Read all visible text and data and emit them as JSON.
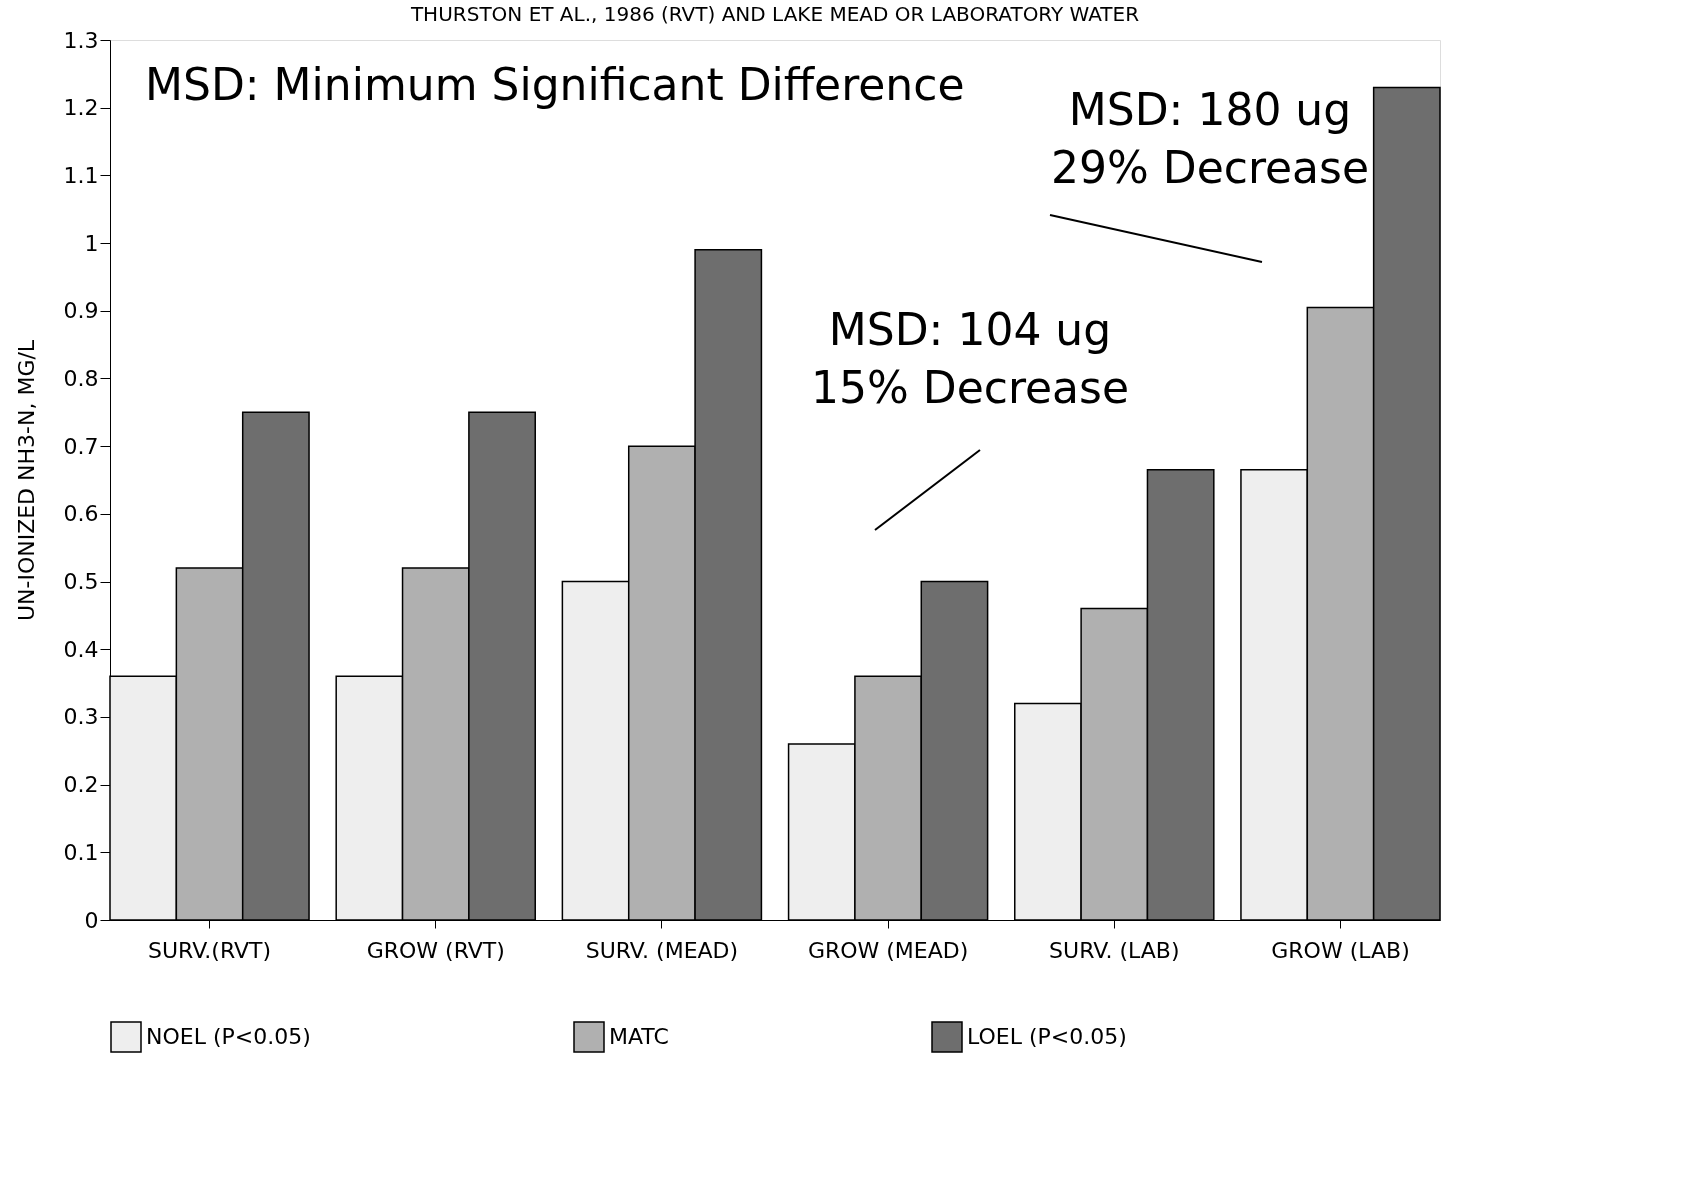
{
  "chart_data": {
    "type": "bar",
    "title": "THURSTON ET AL., 1986 (RVT) AND LAKE MEAD OR LABORATORY WATER",
    "ylabel": "UN-IONIZED NH3-N, MG/L",
    "categories": [
      "SURV.(RVT)",
      "GROW (RVT)",
      "SURV. (MEAD)",
      "GROW (MEAD)",
      "SURV. (LAB)",
      "GROW (LAB)"
    ],
    "series": [
      {
        "name": "NOEL (P<0.05)",
        "color": "#eeeeee",
        "values": [
          0.36,
          0.36,
          0.5,
          0.26,
          0.32,
          0.665
        ]
      },
      {
        "name": "MATC",
        "color": "#b0b0b0",
        "values": [
          0.52,
          0.52,
          0.7,
          0.36,
          0.46,
          0.905
        ]
      },
      {
        "name": "LOEL (P<0.05)",
        "color": "#6e6e6e",
        "values": [
          0.75,
          0.75,
          0.99,
          0.5,
          0.665,
          1.23
        ]
      }
    ],
    "ylim": [
      0,
      1.3
    ],
    "yticks": [
      0,
      0.1,
      0.2,
      0.3,
      0.4,
      0.5,
      0.6,
      0.7,
      0.8,
      0.9,
      1,
      1.1,
      1.2,
      1.3
    ],
    "legend": "bottom",
    "grid": false,
    "annotations": [
      "MSD:  Minimum Significant Difference",
      "MSD:  180 ug\n29% Decrease",
      "MSD:  104 ug\n15% Decrease"
    ]
  }
}
